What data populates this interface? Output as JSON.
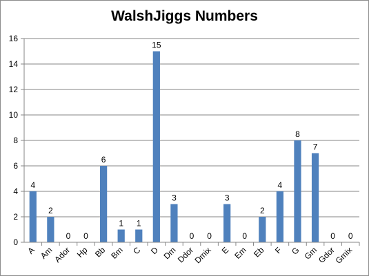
{
  "chart_data": {
    "type": "bar",
    "title": "WalshJiggs Numbers",
    "xlabel": "",
    "ylabel": "",
    "categories": [
      "A",
      "Am",
      "Ador",
      "Hp",
      "Bb",
      "Bm",
      "C",
      "D",
      "Dm",
      "Ddor",
      "Dmix",
      "E",
      "Em",
      "Eb",
      "F",
      "G",
      "Gm",
      "Gdor",
      "Gmix"
    ],
    "values": [
      4,
      2,
      0,
      0,
      6,
      1,
      1,
      15,
      3,
      0,
      0,
      3,
      0,
      2,
      4,
      8,
      7,
      0,
      0
    ],
    "ylim": [
      0,
      16
    ],
    "yticks": [
      0,
      2,
      4,
      6,
      8,
      10,
      12,
      14,
      16
    ],
    "grid": true,
    "legend": "none",
    "bar_color": "#4f81bd",
    "data_labels": true
  }
}
